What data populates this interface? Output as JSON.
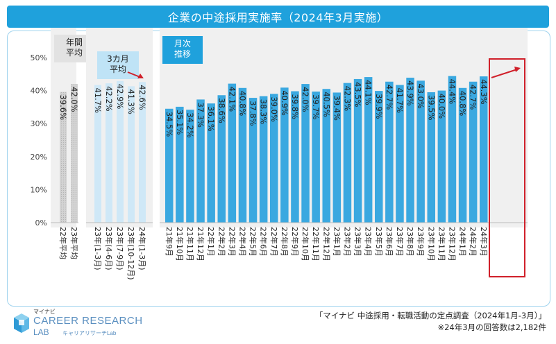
{
  "header": {
    "title": "企業の中途採用実施率（2024年3月実施）"
  },
  "colors": {
    "header_bg": "#1fa1dc",
    "bar_blue": "#3aa8e0",
    "bar_light": "#cfe8f7",
    "bar_gray": "#d3d3d3",
    "highlight_red": "#d0202a"
  },
  "chart_data": {
    "type": "bar",
    "ylim": [
      0,
      50
    ],
    "y_ticks": [
      "0%",
      "10%",
      "20%",
      "30%",
      "40%",
      "50%"
    ],
    "grid": false,
    "groups": [
      {
        "name": "年間 平均",
        "label_lines": [
          "年間",
          "平均"
        ],
        "style": "gray",
        "categories": [
          "22年平均",
          "23年平均"
        ],
        "values": [
          39.6,
          42.0
        ]
      },
      {
        "name": "3カ月 平均",
        "label_lines": [
          "3カ月",
          "平均"
        ],
        "style": "light",
        "categories": [
          "23年(1-3月)",
          "23年(4-6月)",
          "23年(7-9月)",
          "23年(10-12月)",
          "24年(1-3月)"
        ],
        "values": [
          41.7,
          42.2,
          42.9,
          41.3,
          42.6
        ]
      },
      {
        "name": "月次 推移",
        "label_lines": [
          "月次",
          "推移"
        ],
        "style": "blue",
        "categories": [
          "21年9月",
          "21年10月",
          "21年11月",
          "21年12月",
          "22年1月",
          "22年2月",
          "22年3月",
          "22年4月",
          "22年5月",
          "22年6月",
          "22年7月",
          "22年8月",
          "22年9月",
          "22年10月",
          "22年11月",
          "22年12月",
          "23年1月",
          "23年2月",
          "23年3月",
          "23年4月",
          "23年5月",
          "23年6月",
          "23年7月",
          "23年8月",
          "23年9月",
          "23年10月",
          "23年11月",
          "23年12月",
          "24年1月",
          "24年2月",
          "24年3月"
        ],
        "values": [
          34.5,
          35.1,
          34.2,
          37.3,
          36.1,
          38.6,
          42.1,
          40.8,
          37.8,
          38.3,
          39.0,
          40.9,
          39.8,
          42.0,
          39.7,
          40.5,
          39.4,
          42.3,
          43.5,
          44.1,
          39.9,
          42.7,
          41.7,
          43.9,
          43.0,
          39.5,
          40.0,
          44.4,
          40.8,
          42.7,
          44.3
        ]
      }
    ]
  },
  "logo": {
    "small": "マイナビ",
    "main": "CAREER RESEARCH",
    "sub": "LAB",
    "kana": "キャリアリサーチLab"
  },
  "source": {
    "line1": "「マイナビ 中途採用・転職活動の定点調査（2024年1月-3月）」",
    "line2": "※24年3月の回答数は2,182件"
  }
}
